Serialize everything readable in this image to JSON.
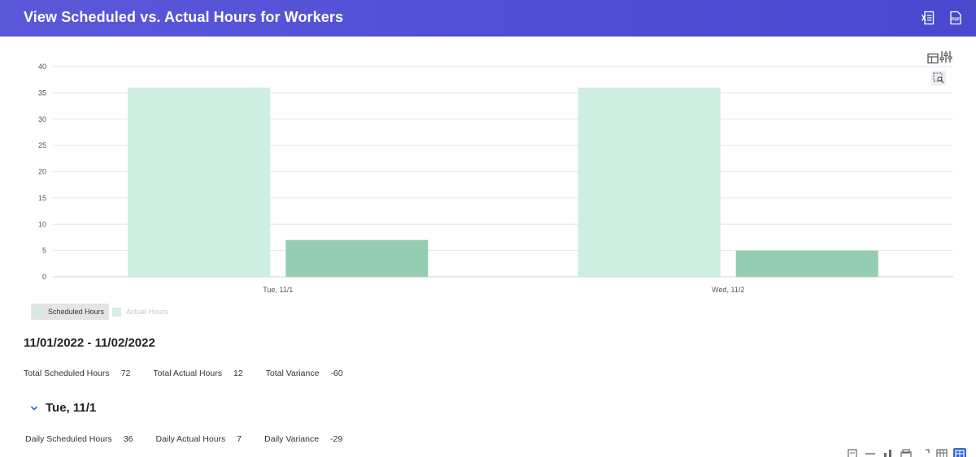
{
  "header": {
    "title": "View Scheduled vs. Actual Hours for Workers",
    "excel_icon": "excel-export-icon",
    "pdf_icon": "pdf-export-icon",
    "pdf_label": "PDF"
  },
  "colors": {
    "header": "#5451d6",
    "scheduled": "#cdeee0",
    "actual": "#94cdb2"
  },
  "chart_data": {
    "type": "bar",
    "categories": [
      "Tue, 11/1",
      "Wed, 11/2"
    ],
    "series": [
      {
        "name": "Scheduled Hours",
        "values": [
          36,
          36
        ],
        "color": "#cdeee0"
      },
      {
        "name": "Actual Hours",
        "values": [
          7,
          5
        ],
        "color": "#94cdb2"
      }
    ],
    "ylim": [
      0,
      40
    ],
    "yticks": [
      0,
      5,
      10,
      15,
      20,
      25,
      30,
      35,
      40
    ],
    "grid": true,
    "legend": "bottom-left"
  },
  "legend": {
    "items": [
      {
        "label": "Scheduled Hours",
        "state": "selected"
      },
      {
        "label": "Actual Hours",
        "state": "off"
      }
    ]
  },
  "summary": {
    "range": "11/01/2022 - 11/02/2022",
    "total_scheduled_label": "Total Scheduled Hours",
    "total_scheduled_value": "72",
    "total_actual_label": "Total Actual Hours",
    "total_actual_value": "12",
    "total_variance_label": "Total Variance",
    "total_variance_value": "-60"
  },
  "day": {
    "title": "Tue, 11/1",
    "daily_scheduled_label": "Daily Scheduled Hours",
    "daily_scheduled_value": "36",
    "daily_actual_label": "Daily Actual Hours",
    "daily_actual_value": "7",
    "daily_variance_label": "Daily Variance",
    "daily_variance_value": "-29"
  }
}
